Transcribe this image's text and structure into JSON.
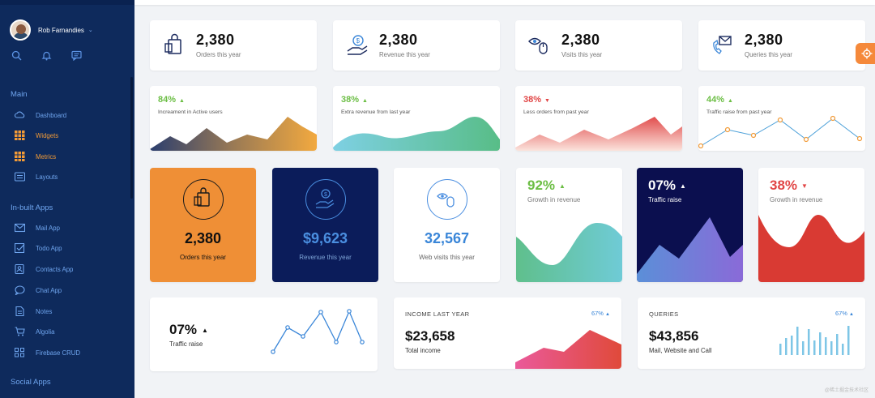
{
  "user": {
    "name": "Rob Farnandies"
  },
  "sidebar": {
    "sections": [
      {
        "title": "Main",
        "items": [
          {
            "label": "Dashboard",
            "icon": "cloud-icon",
            "active": false
          },
          {
            "label": "Widgets",
            "icon": "grid-icon",
            "active": true
          },
          {
            "label": "Metrics",
            "icon": "grid-icon",
            "active": true
          },
          {
            "label": "Layouts",
            "icon": "layout-icon",
            "active": false
          }
        ]
      },
      {
        "title": "In-built Apps",
        "items": [
          {
            "label": "Mail App",
            "icon": "mail-icon"
          },
          {
            "label": "Todo App",
            "icon": "checkbox-icon"
          },
          {
            "label": "Contacts App",
            "icon": "contacts-icon"
          },
          {
            "label": "Chat App",
            "icon": "chat-icon"
          },
          {
            "label": "Notes",
            "icon": "notes-icon"
          },
          {
            "label": "Algolia",
            "icon": "cart-icon"
          },
          {
            "label": "Firebase CRUD",
            "icon": "crud-icon"
          }
        ]
      },
      {
        "title": "Social Apps",
        "items": []
      }
    ]
  },
  "stats": [
    {
      "value": "2,380",
      "label": "Orders this year",
      "icon": "shopping-bag-icon"
    },
    {
      "value": "2,380",
      "label": "Revenue this year",
      "icon": "money-hand-icon"
    },
    {
      "value": "2,380",
      "label": "Visits this year",
      "icon": "eye-mouse-icon"
    },
    {
      "value": "2,380",
      "label": "Queries this year",
      "icon": "mail-phone-icon"
    }
  ],
  "trend_cards": [
    {
      "pct": "84%",
      "dir": "up",
      "label": "Increament in Active users",
      "color": "#6cbe45"
    },
    {
      "pct": "38%",
      "dir": "up",
      "label": "Extra revenue from last year",
      "color": "#6cbe45"
    },
    {
      "pct": "38%",
      "dir": "down",
      "label": "Less orders from past year",
      "color": "#e14545"
    },
    {
      "pct": "44%",
      "dir": "up",
      "label": "Traffic raise from past year",
      "color": "#6cbe45"
    }
  ],
  "tiles": [
    {
      "value": "2,380",
      "label": "Orders this year",
      "bg": "#ef8f36",
      "icon": "shopping-bag-icon"
    },
    {
      "value": "$9,623",
      "label": "Revenue this year",
      "bg": "#0b1c5a",
      "icon": "money-hand-icon"
    },
    {
      "value": "32,567",
      "label": "Web visits this year",
      "bg": "#ffffff",
      "icon": "eye-mouse-icon"
    }
  ],
  "big_charts": [
    {
      "pct": "92%",
      "dir": "up",
      "label": "Growth in revenue",
      "bg": "#ffffff"
    },
    {
      "pct": "07%",
      "dir": "up",
      "label": "Traffic raise",
      "bg": "#0b0f4f"
    },
    {
      "pct": "38%",
      "dir": "down",
      "label": "Growth in revenue",
      "bg": "#ffffff"
    }
  ],
  "bottom": {
    "traffic": {
      "pct": "07%",
      "label": "Traffic raise"
    },
    "income": {
      "title": "INCOME LAST YEAR",
      "pct": "67%",
      "value": "$23,658",
      "label": "Total income"
    },
    "queries": {
      "title": "QUERIES",
      "pct": "67%",
      "value": "$43,856",
      "label": "Mail, Website and Call"
    }
  },
  "watermark": "@稀土掘金技术社区"
}
